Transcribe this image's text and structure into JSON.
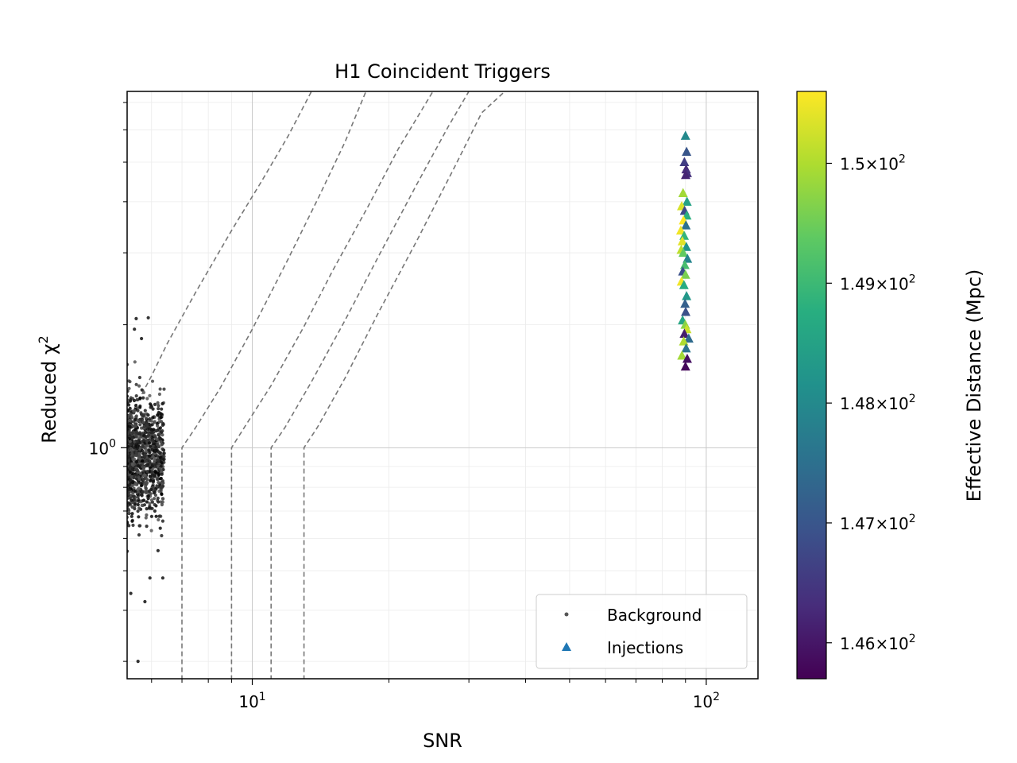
{
  "chart_data": {
    "type": "scatter",
    "title": "H1 Coincident Triggers",
    "xlabel": "SNR",
    "ylabel": "Reduced χ",
    "ylabel_sup": "2",
    "x_scale": "log",
    "y_scale": "log",
    "xlim": [
      5.3,
      130
    ],
    "ylim": [
      0.272,
      7.45
    ],
    "x_ticks": [
      {
        "value": 10,
        "base": "10",
        "exp": "1"
      },
      {
        "value": 100,
        "base": "10",
        "exp": "2"
      }
    ],
    "y_ticks": [
      {
        "value": 1,
        "base": "10",
        "exp": "0"
      }
    ],
    "grid": true,
    "legend": {
      "position": "lower-right",
      "entries": [
        {
          "label": "Background",
          "marker": "dot",
          "color": "#555555"
        },
        {
          "label": "Injections",
          "marker": "triangle",
          "color": "#1f77b4"
        }
      ]
    },
    "colorbar": {
      "label": "Effective Distance (Mpc)",
      "colormap": "viridis",
      "vmin": 145.7,
      "vmax": 150.6,
      "ticks": [
        {
          "value": 146,
          "mantissa": "1.46",
          "base": "10",
          "exp": "2"
        },
        {
          "value": 147,
          "mantissa": "1.47",
          "base": "10",
          "exp": "2"
        },
        {
          "value": 148,
          "mantissa": "1.48",
          "base": "10",
          "exp": "2"
        },
        {
          "value": 149,
          "mantissa": "1.49",
          "base": "10",
          "exp": "2"
        },
        {
          "value": 150,
          "mantissa": "1.5",
          "base": "10",
          "exp": "2"
        }
      ]
    },
    "contours": [
      {
        "threshold_snr": 7,
        "points": [
          [
            7.0,
            0.27
          ],
          [
            7.0,
            1.0
          ],
          [
            7.5,
            1.12
          ],
          [
            8.5,
            1.4
          ],
          [
            10,
            1.95
          ],
          [
            12,
            2.9
          ],
          [
            14,
            4.1
          ],
          [
            16,
            5.6
          ],
          [
            17.8,
            7.45
          ]
        ]
      },
      {
        "threshold_snr": 9,
        "points": [
          [
            9.0,
            0.27
          ],
          [
            9.0,
            1.0
          ],
          [
            9.6,
            1.12
          ],
          [
            11,
            1.42
          ],
          [
            13,
            1.98
          ],
          [
            15,
            2.7
          ],
          [
            18,
            3.9
          ],
          [
            21,
            5.4
          ],
          [
            25,
            7.45
          ]
        ]
      },
      {
        "threshold_snr": 11,
        "points": [
          [
            11.0,
            0.27
          ],
          [
            11.0,
            1.0
          ],
          [
            11.8,
            1.12
          ],
          [
            13.5,
            1.45
          ],
          [
            16,
            2.05
          ],
          [
            19,
            2.95
          ],
          [
            23,
            4.4
          ],
          [
            27,
            6.1
          ],
          [
            30,
            7.45
          ]
        ]
      },
      {
        "threshold_snr": 13,
        "points": [
          [
            13.0,
            0.27
          ],
          [
            13.0,
            1.0
          ],
          [
            13.9,
            1.12
          ],
          [
            16,
            1.48
          ],
          [
            19,
            2.15
          ],
          [
            23,
            3.2
          ],
          [
            28,
            4.9
          ],
          [
            32,
            6.6
          ],
          [
            36,
            7.45
          ]
        ]
      },
      {
        "threshold_snr": 5.5,
        "points": [
          [
            5.5,
            1.25
          ],
          [
            6.0,
            1.5
          ],
          [
            6.5,
            1.8
          ],
          [
            7.5,
            2.4
          ],
          [
            9,
            3.4
          ],
          [
            10.5,
            4.5
          ],
          [
            12,
            5.8
          ],
          [
            13.5,
            7.45
          ]
        ]
      }
    ],
    "background": {
      "description_count": 1200,
      "snr_range": [
        5.3,
        6.4
      ],
      "chisq_center": 0.95,
      "extremes": [
        [
          5.9,
          2.08
        ],
        [
          5.55,
          2.07
        ],
        [
          5.5,
          1.95
        ],
        [
          5.7,
          1.85
        ],
        [
          5.6,
          0.3
        ],
        [
          5.95,
          0.48
        ],
        [
          6.2,
          0.56
        ],
        [
          6.35,
          0.48
        ],
        [
          6.1,
          0.7
        ],
        [
          6.3,
          0.8
        ],
        [
          6.15,
          1.1
        ],
        [
          5.4,
          0.44
        ],
        [
          5.8,
          0.42
        ]
      ]
    },
    "injections": [
      {
        "snr": 90.0,
        "chisq": 5.8,
        "dist": 148.0
      },
      {
        "snr": 90.5,
        "chisq": 5.3,
        "dist": 147.0
      },
      {
        "snr": 89.5,
        "chisq": 5.0,
        "dist": 146.6
      },
      {
        "snr": 90.3,
        "chisq": 4.8,
        "dist": 146.3
      },
      {
        "snr": 90.8,
        "chisq": 4.7,
        "dist": 146.4
      },
      {
        "snr": 90.1,
        "chisq": 4.65,
        "dist": 146.2
      },
      {
        "snr": 88.9,
        "chisq": 4.2,
        "dist": 149.9
      },
      {
        "snr": 90.7,
        "chisq": 4.0,
        "dist": 148.5
      },
      {
        "snr": 88.3,
        "chisq": 3.9,
        "dist": 150.3
      },
      {
        "snr": 89.6,
        "chisq": 3.8,
        "dist": 146.8
      },
      {
        "snr": 90.6,
        "chisq": 3.7,
        "dist": 148.8
      },
      {
        "snr": 89.1,
        "chisq": 3.6,
        "dist": 150.6
      },
      {
        "snr": 90.2,
        "chisq": 3.5,
        "dist": 147.5
      },
      {
        "snr": 87.9,
        "chisq": 3.4,
        "dist": 150.5
      },
      {
        "snr": 89.4,
        "chisq": 3.3,
        "dist": 148.9
      },
      {
        "snr": 88.6,
        "chisq": 3.2,
        "dist": 150.4
      },
      {
        "snr": 90.4,
        "chisq": 3.1,
        "dist": 148.2
      },
      {
        "snr": 88.1,
        "chisq": 3.05,
        "dist": 150.1
      },
      {
        "snr": 89.0,
        "chisq": 3.0,
        "dist": 149.4
      },
      {
        "snr": 90.9,
        "chisq": 2.9,
        "dist": 147.9
      },
      {
        "snr": 89.7,
        "chisq": 2.8,
        "dist": 149.1
      },
      {
        "snr": 88.8,
        "chisq": 2.7,
        "dist": 146.9
      },
      {
        "snr": 90.0,
        "chisq": 2.65,
        "dist": 149.6
      },
      {
        "snr": 88.2,
        "chisq": 2.55,
        "dist": 150.5
      },
      {
        "snr": 89.3,
        "chisq": 2.5,
        "dist": 148.7
      },
      {
        "snr": 90.5,
        "chisq": 2.35,
        "dist": 148.3
      },
      {
        "snr": 89.8,
        "chisq": 2.25,
        "dist": 147.2
      },
      {
        "snr": 90.1,
        "chisq": 2.15,
        "dist": 146.9
      },
      {
        "snr": 88.7,
        "chisq": 2.05,
        "dist": 148.6
      },
      {
        "snr": 89.9,
        "chisq": 2.0,
        "dist": 149.7
      },
      {
        "snr": 90.6,
        "chisq": 1.95,
        "dist": 150.2
      },
      {
        "snr": 89.5,
        "chisq": 1.9,
        "dist": 146.1
      },
      {
        "snr": 91.5,
        "chisq": 1.85,
        "dist": 147.4
      },
      {
        "snr": 89.2,
        "chisq": 1.82,
        "dist": 150.0
      },
      {
        "snr": 90.3,
        "chisq": 1.75,
        "dist": 147.6
      },
      {
        "snr": 88.4,
        "chisq": 1.68,
        "dist": 149.9
      },
      {
        "snr": 90.8,
        "chisq": 1.65,
        "dist": 145.9
      },
      {
        "snr": 90.0,
        "chisq": 1.58,
        "dist": 145.8
      }
    ]
  }
}
